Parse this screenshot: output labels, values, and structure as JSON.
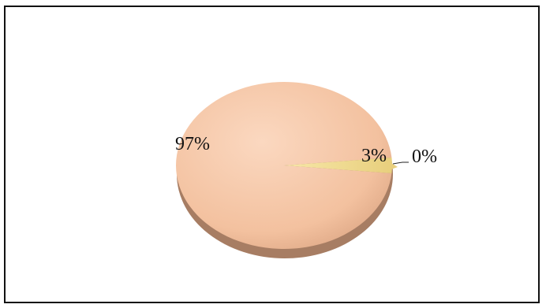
{
  "chart_data": {
    "type": "pie",
    "title": "",
    "slices": [
      {
        "value": 97,
        "label": "97%",
        "color": "#f5c4a3"
      },
      {
        "value": 3,
        "label": "3%",
        "color": "#f1dc92"
      },
      {
        "value": 0,
        "label": "0%",
        "color": "#e8d27a"
      }
    ],
    "legend": "none",
    "style": "3d-shaded"
  }
}
